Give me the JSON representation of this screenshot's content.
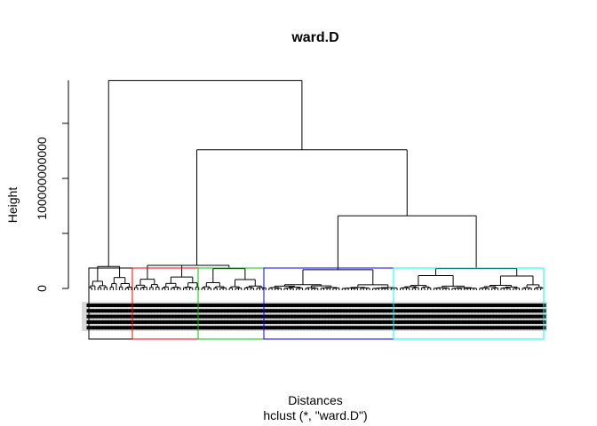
{
  "chart_data": {
    "type": "dendrogram",
    "title": "ward.D",
    "xlabel": "Distances",
    "sub": "hclust (*, \"ward.D\")",
    "ylabel": "Height",
    "ylim": [
      0,
      190000000000
    ],
    "y_ticks": [
      {
        "value": 0,
        "label": "0"
      },
      {
        "value": 50000000000,
        "label": ""
      },
      {
        "value": 100000000000,
        "label": "100000000000"
      },
      {
        "value": 150000000000,
        "label": ""
      }
    ],
    "merge_heights": {
      "root": 189000000000,
      "second": 126000000000,
      "third": 66000000000,
      "cluster1": 20000000000,
      "cluster2": 21000000000,
      "cluster3": 18000000000,
      "cluster4": 17000000000,
      "cluster5": 18000000000
    },
    "n_leaves": 150,
    "clusters": [
      {
        "id": 1,
        "color": "#000000"
      },
      {
        "id": 2,
        "color": "#df536b"
      },
      {
        "id": 3,
        "color": "#61d04f"
      },
      {
        "id": 4,
        "color": "#2297e6"
      },
      {
        "id": 5,
        "color": "#28e2e5"
      }
    ],
    "rect_colors": [
      "#000000",
      "#ff0000",
      "#00cd00",
      "#0000ff",
      "#00ffff"
    ]
  }
}
